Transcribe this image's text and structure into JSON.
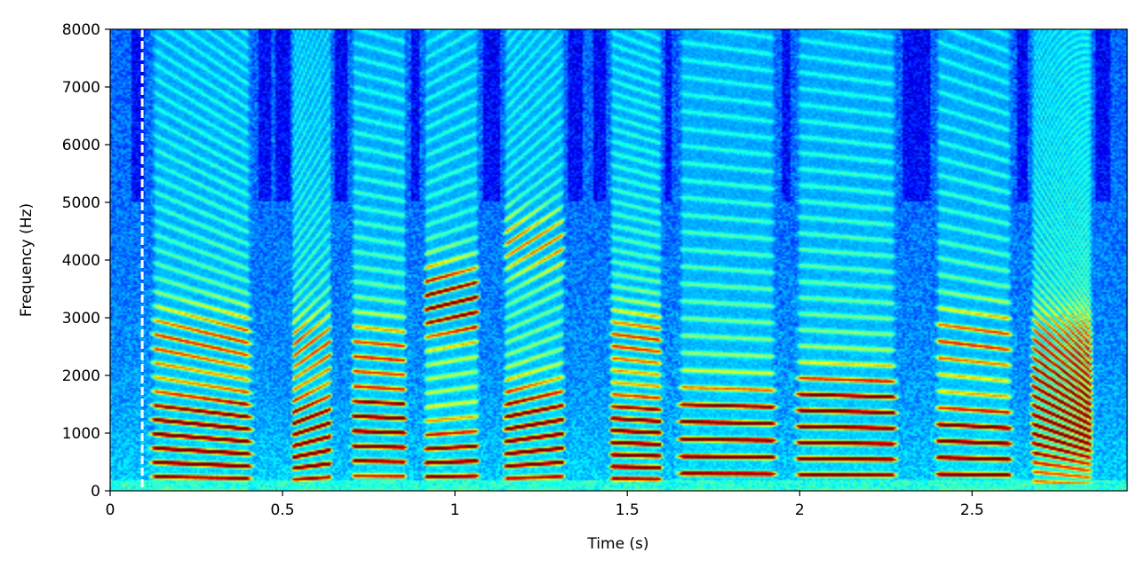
{
  "chart_data": {
    "type": "heatmap",
    "subtype": "spectrogram",
    "title": "",
    "xlabel": "Time (s)",
    "ylabel": "Frequency (Hz)",
    "xlim": [
      0,
      2.95
    ],
    "ylim": [
      0,
      8000
    ],
    "x_ticks": [
      0,
      0.5,
      1,
      1.5,
      2,
      2.5
    ],
    "x_tick_labels": [
      "0",
      "0.5",
      "1",
      "1.5",
      "2",
      "2.5"
    ],
    "y_ticks": [
      0,
      1000,
      2000,
      3000,
      4000,
      5000,
      6000,
      7000,
      8000
    ],
    "y_tick_labels": [
      "0",
      "1000",
      "2000",
      "3000",
      "4000",
      "5000",
      "6000",
      "7000",
      "8000"
    ],
    "colormap": "jet",
    "grid": false,
    "marker_line": {
      "x": 0.093,
      "style": "dashed",
      "color": "#ffffff"
    },
    "voiced_segments": [
      {
        "start": 0.1,
        "end": 0.43,
        "f0": 250,
        "f0_end": 210,
        "formants": [
          600,
          1250,
          2600
        ]
      },
      {
        "start": 0.52,
        "end": 0.65,
        "f0": 190,
        "f0_end": 240,
        "formants": [
          650,
          1200,
          2500
        ]
      },
      {
        "start": 0.69,
        "end": 0.87,
        "f0": 260,
        "f0_end": 250,
        "formants": [
          800,
          1300,
          2400
        ]
      },
      {
        "start": 0.9,
        "end": 1.08,
        "f0": 240,
        "f0_end": 260,
        "formants": [
          550,
          3100,
          3500
        ]
      },
      {
        "start": 1.13,
        "end": 1.33,
        "f0": 210,
        "f0_end": 250,
        "formants": [
          700,
          1350,
          4300
        ]
      },
      {
        "start": 1.44,
        "end": 1.61,
        "f0": 210,
        "f0_end": 200,
        "formants": [
          600,
          1200,
          2600
        ]
      },
      {
        "start": 1.63,
        "end": 1.95,
        "f0": 300,
        "f0_end": 290,
        "formants": [
          640,
          950,
          1300
        ]
      },
      {
        "start": 1.97,
        "end": 2.3,
        "f0": 280,
        "f0_end": 270,
        "formants": [
          650,
          1200,
          1600
        ]
      },
      {
        "start": 2.38,
        "end": 2.63,
        "f0": 290,
        "f0_end": 270,
        "formants": [
          550,
          1000,
          2600
        ]
      },
      {
        "start": 2.66,
        "end": 2.86,
        "f0": 170,
        "f0_end": 110,
        "formants": [
          1000,
          1800,
          2600
        ]
      }
    ]
  },
  "colors": {
    "jet_low": "#00007f",
    "jet_mid": "#7fff7f",
    "jet_high": "#7f0000",
    "background": "#1a3fff"
  }
}
